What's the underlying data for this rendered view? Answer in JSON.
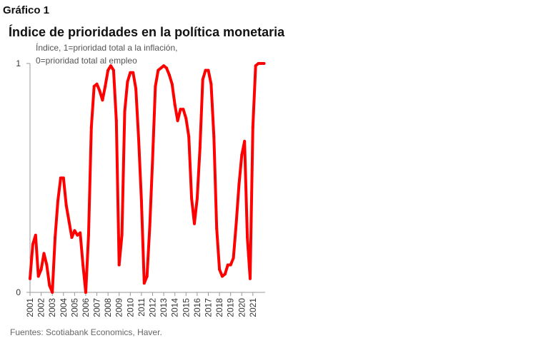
{
  "header": {
    "figure_label": "Gráfico 1",
    "title": "Índice de prioridades en la política monetaria",
    "subtitle_line1": "Índice, 1=prioridad total a la inflación,",
    "subtitle_line2": "0=prioridad total al empleo"
  },
  "footer": {
    "source": "Fuentes: Scotiabank Economics, Haver."
  },
  "chart_data": {
    "type": "line",
    "title": "Índice de prioridades en la política monetaria",
    "ylabel": "Índice, 1=prioridad total a la inflación, 0=prioridad total al empleo",
    "xlabel": "",
    "ylim": [
      0,
      1
    ],
    "xlim": [
      2001,
      2022.1
    ],
    "grid": false,
    "legend": "none",
    "line_color": "#ff0000",
    "y_ticks": [
      "0",
      "1"
    ],
    "x_ticks": [
      "2001",
      "2002",
      "2003",
      "2004",
      "2005",
      "2006",
      "2007",
      "2008",
      "2009",
      "2010",
      "2011",
      "2012",
      "2013",
      "2014",
      "2015",
      "2016",
      "2017",
      "2018",
      "2019",
      "2020",
      "2021"
    ],
    "series": [
      {
        "x": [
          2001.0,
          2001.25,
          2001.5,
          2001.75,
          2002.0,
          2002.25,
          2002.5,
          2002.75,
          2003.0,
          2003.25,
          2003.5,
          2003.75,
          2004.0,
          2004.25,
          2004.5,
          2004.75,
          2005.0,
          2005.25,
          2005.5,
          2005.75,
          2006.0,
          2006.25,
          2006.5,
          2006.75,
          2007.0,
          2007.25,
          2007.5,
          2007.75,
          2008.0,
          2008.25,
          2008.5,
          2008.75,
          2009.0,
          2009.25,
          2009.5,
          2009.75,
          2010.0,
          2010.25,
          2010.5,
          2010.75,
          2011.0,
          2011.25,
          2011.5,
          2011.75,
          2012.0,
          2012.25,
          2012.5,
          2012.75,
          2013.0,
          2013.25,
          2013.5,
          2013.75,
          2014.0,
          2014.25,
          2014.5,
          2014.75,
          2015.0,
          2015.25,
          2015.5,
          2015.75,
          2016.0,
          2016.25,
          2016.5,
          2016.75,
          2017.0,
          2017.25,
          2017.5,
          2017.75,
          2018.0,
          2018.25,
          2018.5,
          2018.75,
          2019.0,
          2019.25,
          2019.5,
          2019.75,
          2020.0,
          2020.25,
          2020.5,
          2020.75,
          2021.0,
          2021.25,
          2021.5,
          2021.75,
          2022.0
        ],
        "values": [
          0.06,
          0.21,
          0.25,
          0.07,
          0.1,
          0.17,
          0.12,
          0.03,
          0.0,
          0.24,
          0.4,
          0.5,
          0.5,
          0.38,
          0.31,
          0.24,
          0.27,
          0.25,
          0.26,
          0.12,
          0.0,
          0.25,
          0.72,
          0.9,
          0.91,
          0.88,
          0.84,
          0.9,
          0.97,
          0.99,
          0.97,
          0.75,
          0.12,
          0.25,
          0.79,
          0.92,
          0.96,
          0.96,
          0.89,
          0.67,
          0.4,
          0.04,
          0.07,
          0.29,
          0.58,
          0.9,
          0.97,
          0.98,
          0.99,
          0.98,
          0.95,
          0.91,
          0.82,
          0.75,
          0.8,
          0.8,
          0.76,
          0.68,
          0.41,
          0.3,
          0.41,
          0.63,
          0.93,
          0.97,
          0.97,
          0.91,
          0.68,
          0.28,
          0.1,
          0.07,
          0.08,
          0.12,
          0.12,
          0.15,
          0.3,
          0.47,
          0.6,
          0.66,
          0.24,
          0.06,
          0.72,
          0.99,
          1.0,
          1.0,
          1.0
        ]
      }
    ]
  }
}
